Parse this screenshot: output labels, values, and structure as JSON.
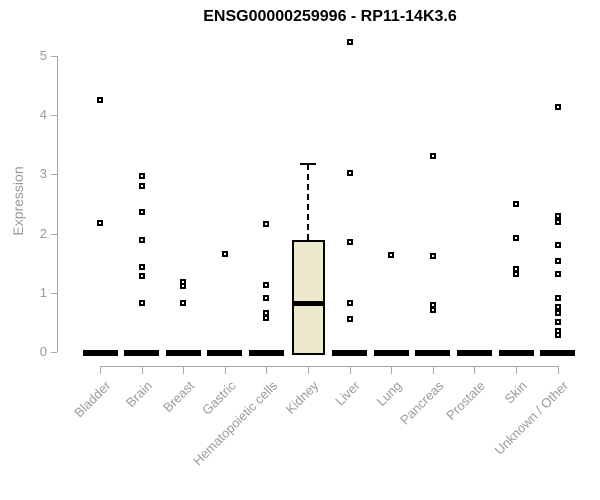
{
  "chart_data": {
    "type": "boxplot",
    "title": "ENSG00000259996 - RP11-14K3.6",
    "xlabel": "",
    "ylabel": "Expression",
    "ylim": [
      0,
      5
    ],
    "yticks": [
      0,
      1,
      2,
      3,
      4,
      5
    ],
    "grid": false,
    "legend": false,
    "colors": {
      "box_fill": "#ece9cd",
      "box_stroke": "#000000",
      "point_stroke": "#000000",
      "axis": "#a8a8a8",
      "axis_text": "#9a9a9a",
      "title_text": "#000000"
    },
    "categories": [
      "Bladder",
      "Brain",
      "Breast",
      "Gastric",
      "Hematopoietic cells",
      "Kidney",
      "Liver",
      "Lung",
      "Pancreas",
      "Prostate",
      "Skin",
      "Unknown / Other"
    ],
    "groups": [
      {
        "name": "Bladder",
        "q1": 0,
        "median": 0,
        "q3": 0,
        "whisker_low": 0,
        "whisker_high": 0,
        "outliers": [
          4.26,
          2.18
        ]
      },
      {
        "name": "Brain",
        "q1": 0,
        "median": 0,
        "q3": 0,
        "whisker_low": 0,
        "whisker_high": 0,
        "outliers": [
          2.97,
          2.8,
          2.36,
          1.89,
          1.43,
          1.28,
          0.83
        ]
      },
      {
        "name": "Breast",
        "q1": 0,
        "median": 0,
        "q3": 0,
        "whisker_low": 0,
        "whisker_high": 0,
        "outliers": [
          1.19,
          1.12,
          0.82
        ]
      },
      {
        "name": "Gastric",
        "q1": 0,
        "median": 0,
        "q3": 0,
        "whisker_low": 0,
        "whisker_high": 0,
        "outliers": [
          1.66
        ]
      },
      {
        "name": "Hematopoietic cells",
        "q1": 0,
        "median": 0,
        "q3": 0,
        "whisker_low": 0,
        "whisker_high": 0,
        "outliers": [
          2.17,
          1.13,
          0.91,
          0.66,
          0.58
        ]
      },
      {
        "name": "Kidney",
        "q1": 0,
        "median": 0.83,
        "q3": 1.9,
        "whisker_low": 0,
        "whisker_high": 3.18,
        "outliers": []
      },
      {
        "name": "Liver",
        "q1": 0,
        "median": 0,
        "q3": 0,
        "whisker_low": 0,
        "whisker_high": 0,
        "outliers": [
          5.24,
          3.03,
          1.85,
          0.83,
          0.55
        ]
      },
      {
        "name": "Lung",
        "q1": 0,
        "median": 0,
        "q3": 0,
        "whisker_low": 0,
        "whisker_high": 0,
        "outliers": [
          1.64
        ]
      },
      {
        "name": "Pancreas",
        "q1": 0,
        "median": 0,
        "q3": 0,
        "whisker_low": 0,
        "whisker_high": 0,
        "outliers": [
          3.31,
          1.62,
          0.79,
          0.71
        ]
      },
      {
        "name": "Prostate",
        "q1": 0,
        "median": 0,
        "q3": 0,
        "whisker_low": 0,
        "whisker_high": 0,
        "outliers": []
      },
      {
        "name": "Skin",
        "q1": 0,
        "median": 0,
        "q3": 0,
        "whisker_low": 0,
        "whisker_high": 0,
        "outliers": [
          2.5,
          1.92,
          1.4,
          1.31
        ]
      },
      {
        "name": "Unknown / Other",
        "q1": 0,
        "median": 0,
        "q3": 0,
        "whisker_low": 0,
        "whisker_high": 0,
        "outliers": [
          4.14,
          2.29,
          2.2,
          1.81,
          1.53,
          1.31,
          0.91,
          0.76,
          0.66,
          0.51,
          0.36,
          0.29
        ]
      }
    ]
  }
}
